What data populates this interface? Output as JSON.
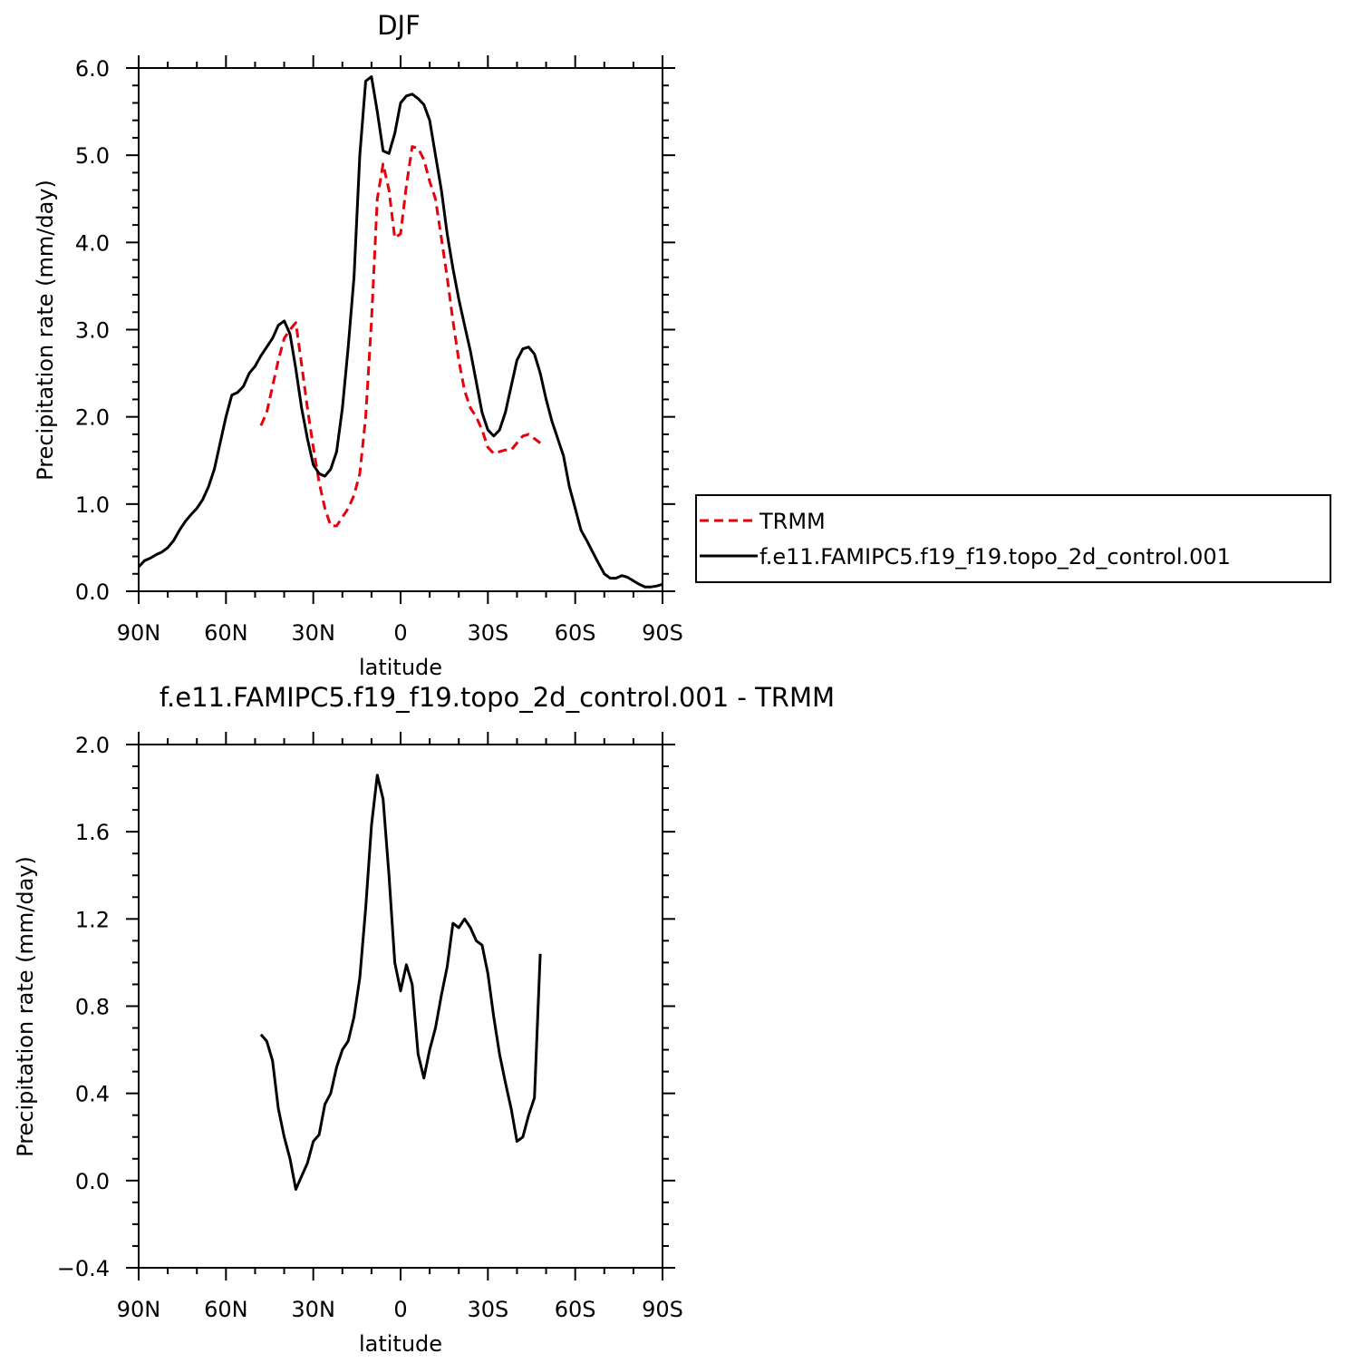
{
  "chart_data": [
    {
      "type": "line",
      "title": "DJF",
      "xlabel": "latitude",
      "ylabel": "Precipitation rate (mm/day)",
      "xlim": [
        -90,
        90
      ],
      "ylim": [
        0,
        6
      ],
      "x_ticks": [
        {
          "v": -90,
          "label": "90N"
        },
        {
          "v": -60,
          "label": "60N"
        },
        {
          "v": -30,
          "label": "30N"
        },
        {
          "v": 0,
          "label": "0"
        },
        {
          "v": 30,
          "label": "30S"
        },
        {
          "v": 60,
          "label": "60S"
        },
        {
          "v": 90,
          "label": "90S"
        }
      ],
      "y_ticks": [
        {
          "v": 0,
          "label": "0.0"
        },
        {
          "v": 1,
          "label": "1.0"
        },
        {
          "v": 2,
          "label": "2.0"
        },
        {
          "v": 3,
          "label": "3.0"
        },
        {
          "v": 4,
          "label": "4.0"
        },
        {
          "v": 5,
          "label": "5.0"
        },
        {
          "v": 6,
          "label": "6.0"
        }
      ],
      "legend": "right",
      "series": [
        {
          "name": "TRMM",
          "color": "#e8000b",
          "dash": true,
          "x": [
            -48,
            -46,
            -44,
            -42,
            -40,
            -38,
            -36,
            -34,
            -32,
            -30,
            -28,
            -26,
            -24,
            -22,
            -20,
            -18,
            -16,
            -14,
            -12,
            -10,
            -8,
            -6,
            -4,
            -2,
            0,
            2,
            4,
            6,
            8,
            10,
            12,
            14,
            16,
            18,
            20,
            22,
            24,
            26,
            28,
            30,
            32,
            34,
            36,
            38,
            40,
            42,
            44,
            46,
            48
          ],
          "y": [
            1.9,
            2.05,
            2.35,
            2.65,
            2.9,
            3.0,
            3.08,
            2.6,
            2.1,
            1.65,
            1.25,
            0.95,
            0.75,
            0.75,
            0.85,
            0.95,
            1.1,
            1.35,
            2.0,
            3.1,
            4.5,
            4.9,
            4.6,
            4.05,
            4.1,
            4.65,
            5.1,
            5.08,
            4.95,
            4.7,
            4.5,
            4.05,
            3.6,
            3.1,
            2.65,
            2.3,
            2.1,
            2.0,
            1.85,
            1.65,
            1.58,
            1.6,
            1.62,
            1.62,
            1.7,
            1.78,
            1.8,
            1.75,
            1.7
          ]
        },
        {
          "name": "f.e11.FAMIPC5.f19_f19.topo_2d_control.001",
          "color": "#000000",
          "dash": false,
          "x": [
            -90,
            -88,
            -86,
            -84,
            -82,
            -80,
            -78,
            -76,
            -74,
            -72,
            -70,
            -68,
            -66,
            -64,
            -62,
            -60,
            -58,
            -56,
            -54,
            -52,
            -50,
            -48,
            -46,
            -44,
            -42,
            -40,
            -38,
            -36,
            -34,
            -32,
            -30,
            -28,
            -26,
            -24,
            -22,
            -20,
            -18,
            -16,
            -14,
            -12,
            -10,
            -8,
            -6,
            -4,
            -2,
            0,
            2,
            4,
            6,
            8,
            10,
            12,
            14,
            16,
            18,
            20,
            22,
            24,
            26,
            28,
            30,
            32,
            34,
            36,
            38,
            40,
            42,
            44,
            46,
            48,
            50,
            52,
            54,
            56,
            58,
            60,
            62,
            64,
            66,
            68,
            70,
            72,
            74,
            76,
            78,
            80,
            82,
            84,
            86,
            88,
            90
          ],
          "y": [
            0.28,
            0.35,
            0.38,
            0.42,
            0.45,
            0.5,
            0.58,
            0.7,
            0.8,
            0.88,
            0.95,
            1.05,
            1.2,
            1.4,
            1.7,
            2.0,
            2.25,
            2.28,
            2.35,
            2.5,
            2.58,
            2.7,
            2.8,
            2.9,
            3.05,
            3.1,
            2.95,
            2.55,
            2.1,
            1.75,
            1.45,
            1.35,
            1.32,
            1.4,
            1.6,
            2.1,
            2.8,
            3.6,
            5.0,
            5.85,
            5.9,
            5.5,
            5.05,
            5.02,
            5.25,
            5.6,
            5.68,
            5.7,
            5.65,
            5.58,
            5.4,
            5.0,
            4.6,
            4.1,
            3.7,
            3.35,
            3.05,
            2.75,
            2.4,
            2.05,
            1.85,
            1.78,
            1.85,
            2.05,
            2.35,
            2.65,
            2.78,
            2.8,
            2.72,
            2.5,
            2.2,
            1.95,
            1.75,
            1.55,
            1.2,
            0.95,
            0.7,
            0.58,
            0.45,
            0.32,
            0.2,
            0.15,
            0.15,
            0.18,
            0.16,
            0.12,
            0.08,
            0.05,
            0.05,
            0.06,
            0.08
          ]
        }
      ]
    },
    {
      "type": "line",
      "title": "f.e11.FAMIPC5.f19_f19.topo_2d_control.001 - TRMM",
      "xlabel": "latitude",
      "ylabel": "Precipitation rate (mm/day)",
      "xlim": [
        -90,
        90
      ],
      "ylim": [
        -0.4,
        2.0
      ],
      "x_ticks": [
        {
          "v": -90,
          "label": "90N"
        },
        {
          "v": -60,
          "label": "60N"
        },
        {
          "v": -30,
          "label": "30N"
        },
        {
          "v": 0,
          "label": "0"
        },
        {
          "v": 30,
          "label": "30S"
        },
        {
          "v": 60,
          "label": "60S"
        },
        {
          "v": 90,
          "label": "90S"
        }
      ],
      "y_ticks": [
        {
          "v": -0.4,
          "label": "−0.4"
        },
        {
          "v": 0.0,
          "label": "0.0"
        },
        {
          "v": 0.4,
          "label": "0.4"
        },
        {
          "v": 0.8,
          "label": "0.8"
        },
        {
          "v": 1.2,
          "label": "1.2"
        },
        {
          "v": 1.6,
          "label": "1.6"
        },
        {
          "v": 2.0,
          "label": "2.0"
        }
      ],
      "series": [
        {
          "color": "#000000",
          "dash": false,
          "x": [
            -48,
            -46,
            -44,
            -42,
            -40,
            -38,
            -36,
            -34,
            -32,
            -30,
            -28,
            -26,
            -24,
            -22,
            -20,
            -18,
            -16,
            -14,
            -12,
            -10,
            -8,
            -6,
            -4,
            -2,
            0,
            2,
            4,
            6,
            8,
            10,
            12,
            14,
            16,
            18,
            20,
            22,
            24,
            26,
            28,
            30,
            32,
            34,
            36,
            38,
            40,
            42,
            44,
            46,
            48
          ],
          "y": [
            0.67,
            0.64,
            0.55,
            0.33,
            0.2,
            0.1,
            -0.04,
            0.02,
            0.08,
            0.18,
            0.21,
            0.35,
            0.4,
            0.52,
            0.6,
            0.64,
            0.75,
            0.93,
            1.25,
            1.63,
            1.86,
            1.75,
            1.4,
            1.0,
            0.87,
            0.99,
            0.9,
            0.58,
            0.47,
            0.6,
            0.7,
            0.85,
            0.98,
            1.18,
            1.16,
            1.2,
            1.16,
            1.1,
            1.08,
            0.95,
            0.75,
            0.58,
            0.45,
            0.33,
            0.18,
            0.2,
            0.3,
            0.38,
            1.04
          ]
        }
      ]
    }
  ]
}
